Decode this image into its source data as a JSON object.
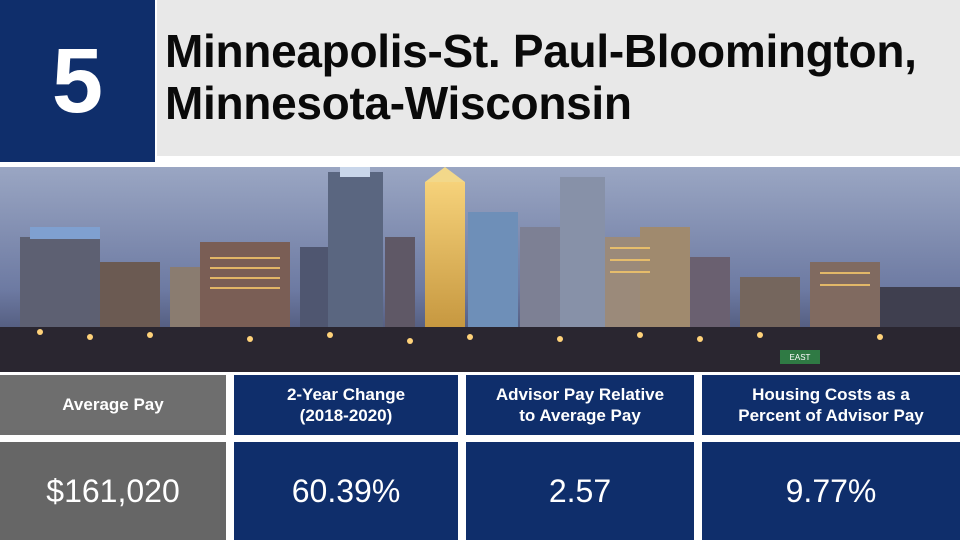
{
  "header": {
    "rank": "5",
    "title_line1": "Minneapolis-St. Paul-Bloomington,",
    "title_line2": "Minnesota-Wisconsin"
  },
  "photo": {
    "description_icon": "city-skyline-photo",
    "sign_text": "EAST"
  },
  "stats": [
    {
      "label_line1": "Average Pay",
      "label_line2": "",
      "value": "$161,020"
    },
    {
      "label_line1": "2-Year Change",
      "label_line2": "(2018-2020)",
      "value": "60.39%"
    },
    {
      "label_line1": "Advisor Pay Relative",
      "label_line2": "to Average Pay",
      "value": "2.57"
    },
    {
      "label_line1": "Housing Costs as a",
      "label_line2": "Percent of Advisor Pay",
      "value": "9.77%"
    }
  ],
  "colors": {
    "navy": "#0f2e6b",
    "gray": "#6e6e6e",
    "title_bg": "#e8e8e8"
  }
}
